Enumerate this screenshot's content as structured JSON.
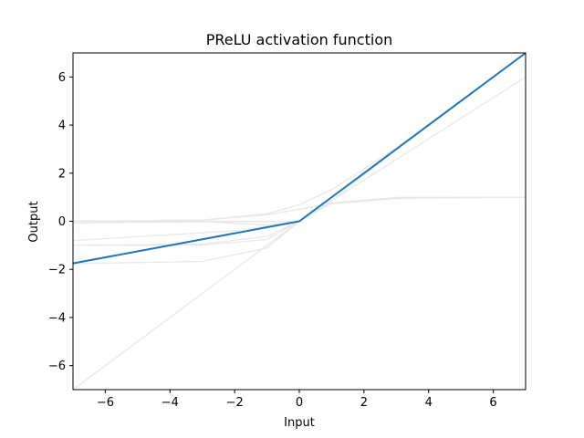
{
  "chart_data": {
    "type": "line",
    "title": "PReLU activation function",
    "xlabel": "Input",
    "ylabel": "Output",
    "xlim": [
      -7,
      7
    ],
    "ylim": [
      -7,
      7
    ],
    "xticks": [
      -6,
      -4,
      -2,
      0,
      2,
      4,
      6
    ],
    "yticks": [
      -6,
      -4,
      -2,
      0,
      2,
      4,
      6
    ],
    "grid": false,
    "series": [
      {
        "color": "#1f77b4",
        "x": [
          -7,
          0,
          7
        ],
        "y": [
          -1.75,
          0,
          7
        ]
      }
    ],
    "background_curves": {
      "color": "#e8e8e8",
      "description_free": true,
      "curves": [
        {
          "kind": "sigmoid",
          "x": [
            -7,
            -3,
            -1,
            0,
            1,
            3,
            7
          ],
          "y": [
            0.0,
            0.05,
            0.27,
            0.5,
            0.73,
            0.95,
            1.0
          ]
        },
        {
          "kind": "tanh",
          "x": [
            -7,
            -3,
            -1,
            0,
            1,
            3,
            7
          ],
          "y": [
            -1.0,
            -0.99,
            -0.76,
            0,
            0.76,
            0.99,
            1.0
          ]
        },
        {
          "kind": "relu",
          "x": [
            -7,
            0,
            7
          ],
          "y": [
            0,
            0,
            7
          ]
        },
        {
          "kind": "leaky",
          "x": [
            -7,
            0,
            7
          ],
          "y": [
            -0.07,
            0,
            7
          ]
        },
        {
          "kind": "elu",
          "x": [
            -7,
            -3,
            -1,
            0,
            7
          ],
          "y": [
            -1.0,
            -0.95,
            -0.63,
            0,
            7
          ]
        },
        {
          "kind": "identity",
          "x": [
            -7,
            7
          ],
          "y": [
            -7,
            7
          ]
        },
        {
          "kind": "selu",
          "x": [
            -7,
            -3,
            -1,
            0,
            7
          ],
          "y": [
            -1.76,
            -1.67,
            -1.11,
            0,
            7.35
          ]
        },
        {
          "kind": "softplus",
          "x": [
            -7,
            -3,
            -1,
            0,
            1,
            3,
            7
          ],
          "y": [
            0.0,
            0.05,
            0.31,
            0.69,
            1.31,
            3.05,
            7.0
          ]
        },
        {
          "kind": "gelu",
          "x": [
            -7,
            -3,
            -1,
            0,
            1,
            3,
            7
          ],
          "y": [
            0,
            -0.004,
            -0.16,
            0,
            0.84,
            2.996,
            7
          ]
        },
        {
          "kind": "shifted",
          "x": [
            -7,
            -2,
            0,
            7
          ],
          "y": [
            -0.8,
            -0.4,
            0,
            6.0
          ]
        }
      ]
    }
  }
}
